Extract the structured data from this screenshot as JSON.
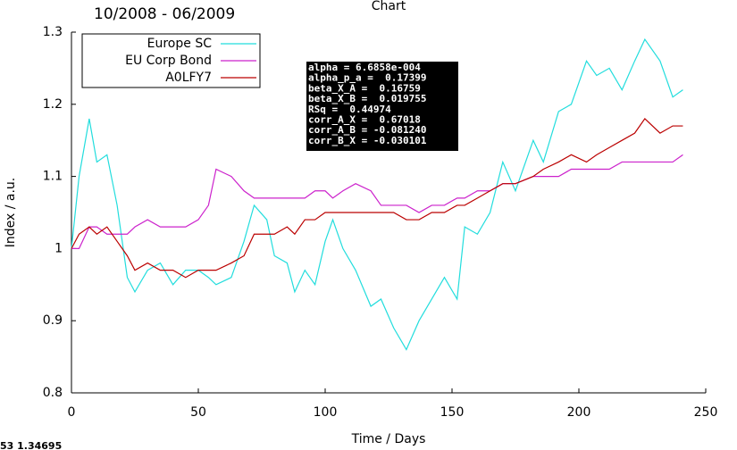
{
  "chart_data": {
    "type": "line",
    "title": "Chart",
    "header": "10/2008 - 06/2009",
    "x_label": "Time / Days",
    "y_label": "Index / a.u.",
    "x": [
      0,
      3,
      7,
      10,
      14,
      18,
      22,
      25,
      30,
      35,
      40,
      45,
      50,
      54,
      57,
      63,
      68,
      72,
      77,
      80,
      85,
      88,
      92,
      96,
      100,
      103,
      107,
      112,
      118,
      122,
      127,
      132,
      137,
      142,
      147,
      152,
      155,
      160,
      165,
      170,
      175,
      182,
      186,
      192,
      197,
      203,
      207,
      212,
      217,
      222,
      226,
      232,
      237,
      241
    ],
    "series": [
      {
        "name": "Europe SC",
        "color": "#22dddd",
        "values": [
          1.0,
          1.1,
          1.18,
          1.12,
          1.13,
          1.06,
          0.96,
          0.94,
          0.97,
          0.98,
          0.95,
          0.97,
          0.97,
          0.96,
          0.95,
          0.96,
          1.01,
          1.06,
          1.04,
          0.99,
          0.98,
          0.94,
          0.97,
          0.95,
          1.01,
          1.04,
          1.0,
          0.97,
          0.92,
          0.93,
          0.89,
          0.86,
          0.9,
          0.93,
          0.96,
          0.93,
          1.03,
          1.02,
          1.05,
          1.12,
          1.08,
          1.15,
          1.12,
          1.19,
          1.2,
          1.26,
          1.24,
          1.25,
          1.22,
          1.26,
          1.29,
          1.26,
          1.21,
          1.22
        ]
      },
      {
        "name": "EU Corp Bond",
        "color": "#cc22cc",
        "values": [
          1.0,
          1.0,
          1.03,
          1.03,
          1.02,
          1.02,
          1.02,
          1.03,
          1.04,
          1.03,
          1.03,
          1.03,
          1.04,
          1.06,
          1.11,
          1.1,
          1.08,
          1.07,
          1.07,
          1.07,
          1.07,
          1.07,
          1.07,
          1.08,
          1.08,
          1.07,
          1.08,
          1.09,
          1.08,
          1.06,
          1.06,
          1.06,
          1.05,
          1.06,
          1.06,
          1.07,
          1.07,
          1.08,
          1.08,
          1.09,
          1.09,
          1.1,
          1.1,
          1.1,
          1.11,
          1.11,
          1.11,
          1.11,
          1.12,
          1.12,
          1.12,
          1.12,
          1.12,
          1.13
        ]
      },
      {
        "name": "A0LFY7",
        "color": "#bb0000",
        "values": [
          1.0,
          1.02,
          1.03,
          1.02,
          1.03,
          1.01,
          0.99,
          0.97,
          0.98,
          0.97,
          0.97,
          0.96,
          0.97,
          0.97,
          0.97,
          0.98,
          0.99,
          1.02,
          1.02,
          1.02,
          1.03,
          1.02,
          1.04,
          1.04,
          1.05,
          1.05,
          1.05,
          1.05,
          1.05,
          1.05,
          1.05,
          1.04,
          1.04,
          1.05,
          1.05,
          1.06,
          1.06,
          1.07,
          1.08,
          1.09,
          1.09,
          1.1,
          1.11,
          1.12,
          1.13,
          1.12,
          1.13,
          1.14,
          1.15,
          1.16,
          1.18,
          1.16,
          1.17,
          1.17
        ]
      }
    ],
    "xlim": [
      0,
      250
    ],
    "xticks": [
      0,
      50,
      100,
      150,
      200,
      250
    ],
    "ylim": [
      0.8,
      1.3
    ],
    "yticks": [
      0.8,
      0.9,
      1,
      1.1,
      1.2,
      1.3
    ],
    "grid": false,
    "legend": "upper left",
    "stats_box": [
      "alpha = 6.6858e-004",
      "alpha_p_a =  0.17399",
      "beta_X_A =  0.16759",
      "beta_X_B =  0.019755",
      "RSq =  0.44974",
      "corr_A_X =  0.67018",
      "corr_A_B = -0.081240",
      "corr_B_X = -0.030101"
    ],
    "status_text": "53  1.34695"
  }
}
